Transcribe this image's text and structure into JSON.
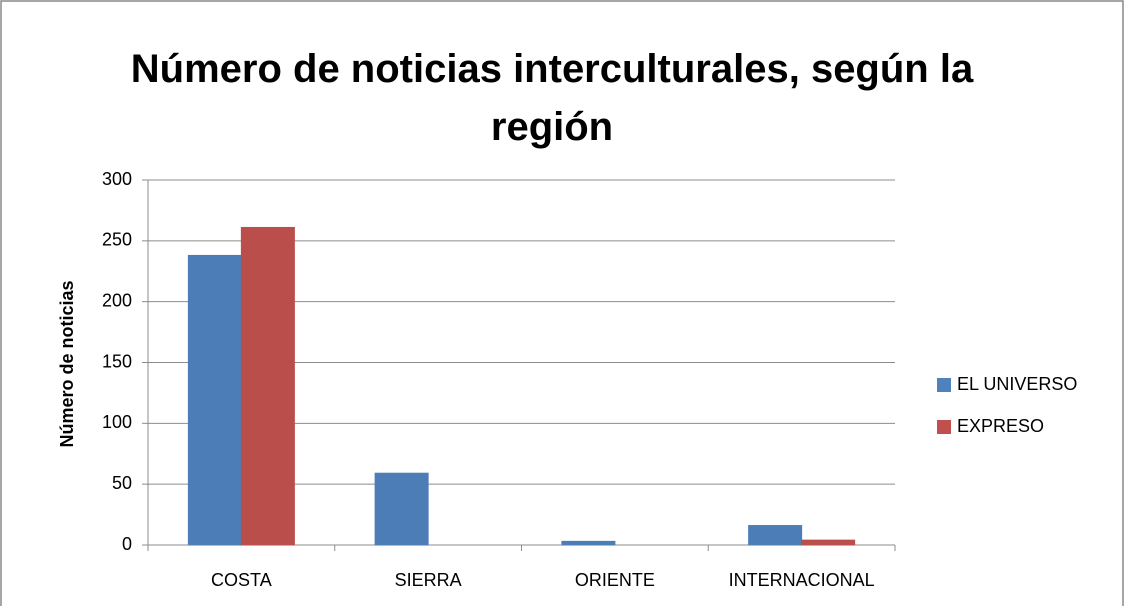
{
  "chart_data": {
    "type": "bar",
    "title": "Número de noticias interculturales, según la región",
    "y_label": "Número de noticias",
    "categories": [
      "COSTA",
      "SIERRA",
      "ORIENTE",
      "INTERNACIONAL"
    ],
    "series": [
      {
        "name": "EL UNIVERSO",
        "color": "#4f81bd",
        "values": [
          238,
          59,
          3,
          16
        ]
      },
      {
        "name": "EXPRESO",
        "color": "#c0504d",
        "values": [
          261,
          0,
          0,
          4
        ]
      }
    ],
    "ylim": [
      0,
      300
    ],
    "yticks": [
      0,
      50,
      100,
      150,
      200,
      250,
      300
    ],
    "grid": true,
    "legend": "right"
  }
}
